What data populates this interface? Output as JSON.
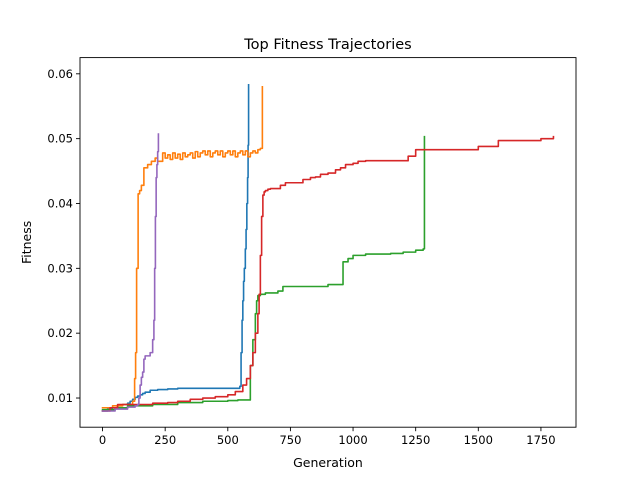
{
  "chart_data": {
    "type": "line",
    "title": "Top Fitness Trajectories",
    "xlabel": "Generation",
    "ylabel": "Fitness",
    "xlim": [
      -90,
      1890
    ],
    "ylim": [
      0.0055,
      0.0625
    ],
    "xticks": [
      0,
      250,
      500,
      750,
      1000,
      1250,
      1500,
      1750
    ],
    "xtick_labels": [
      "0",
      "250",
      "500",
      "750",
      "1000",
      "1250",
      "1500",
      "1750"
    ],
    "yticks": [
      0.01,
      0.02,
      0.03,
      0.04,
      0.05,
      0.06
    ],
    "ytick_labels": [
      "0.01",
      "0.02",
      "0.03",
      "0.04",
      "0.05",
      "0.06"
    ],
    "grid": false,
    "legend": "none",
    "series": [
      {
        "color": "#1f77b4",
        "step": true,
        "x": [
          0,
          20,
          40,
          60,
          80,
          100,
          110,
          120,
          130,
          140,
          150,
          160,
          170,
          190,
          220,
          260,
          300,
          400,
          500,
          548,
          553,
          557,
          560,
          563,
          566,
          570,
          573,
          576,
          579,
          581,
          583
        ],
        "y": [
          0.008,
          0.0083,
          0.0085,
          0.0088,
          0.009,
          0.0092,
          0.0095,
          0.0098,
          0.0101,
          0.0103,
          0.0105,
          0.0107,
          0.0109,
          0.0112,
          0.0113,
          0.0114,
          0.0115,
          0.0115,
          0.0115,
          0.0118,
          0.017,
          0.022,
          0.025,
          0.028,
          0.03,
          0.033,
          0.036,
          0.04,
          0.044,
          0.049,
          0.0583
        ]
      },
      {
        "color": "#ff7f0e",
        "step": true,
        "x": [
          0,
          40,
          80,
          120,
          128,
          132,
          136,
          142,
          148,
          155,
          165,
          180,
          195,
          210,
          220,
          240,
          250,
          260,
          270,
          280,
          290,
          300,
          310,
          320,
          330,
          340,
          350,
          360,
          370,
          380,
          390,
          400,
          410,
          420,
          430,
          440,
          450,
          460,
          470,
          480,
          490,
          500,
          510,
          520,
          530,
          540,
          550,
          560,
          570,
          580,
          590,
          600,
          610,
          620,
          630,
          638
        ],
        "y": [
          0.0085,
          0.0088,
          0.009,
          0.0095,
          0.013,
          0.017,
          0.03,
          0.0415,
          0.042,
          0.0428,
          0.0455,
          0.046,
          0.0465,
          0.047,
          0.0465,
          0.0478,
          0.047,
          0.0475,
          0.0468,
          0.0478,
          0.047,
          0.0476,
          0.0468,
          0.0478,
          0.0472,
          0.0475,
          0.0478,
          0.047,
          0.048,
          0.0472,
          0.0478,
          0.0481,
          0.0475,
          0.0481,
          0.0472,
          0.0478,
          0.0481,
          0.0475,
          0.0481,
          0.0472,
          0.0478,
          0.0481,
          0.0475,
          0.0481,
          0.0472,
          0.0478,
          0.0481,
          0.0475,
          0.0481,
          0.0472,
          0.0478,
          0.0481,
          0.0478,
          0.0483,
          0.0485,
          0.058
        ]
      },
      {
        "color": "#2ca02c",
        "step": true,
        "x": [
          0,
          50,
          100,
          200,
          300,
          400,
          500,
          540,
          590,
          600,
          610,
          615,
          620,
          625,
          630,
          640,
          650,
          700,
          720,
          900,
          950,
          960,
          980,
          1000,
          1050,
          1100,
          1150,
          1200,
          1250,
          1280,
          1285
        ],
        "y": [
          0.0082,
          0.0085,
          0.0088,
          0.009,
          0.0093,
          0.0095,
          0.0096,
          0.0097,
          0.015,
          0.019,
          0.023,
          0.025,
          0.0258,
          0.0258,
          0.026,
          0.026,
          0.0262,
          0.0265,
          0.0272,
          0.0275,
          0.0275,
          0.031,
          0.0315,
          0.032,
          0.0322,
          0.0322,
          0.0323,
          0.0325,
          0.0328,
          0.033,
          0.0503
        ]
      },
      {
        "color": "#d62728",
        "step": true,
        "x": [
          0,
          30,
          60,
          100,
          200,
          260,
          300,
          350,
          400,
          450,
          500,
          530,
          560,
          575,
          590,
          600,
          610,
          620,
          625,
          630,
          635,
          640,
          645,
          650,
          660,
          670,
          690,
          710,
          730,
          770,
          800,
          830,
          850,
          870,
          900,
          930,
          950,
          970,
          1000,
          1020,
          1050,
          1120,
          1200,
          1220,
          1250,
          1300,
          1400,
          1500,
          1530,
          1580,
          1650,
          1700,
          1750,
          1800
        ],
        "y": [
          0.008,
          0.0085,
          0.009,
          0.009,
          0.0092,
          0.0093,
          0.0095,
          0.0098,
          0.01,
          0.0102,
          0.0105,
          0.011,
          0.012,
          0.013,
          0.015,
          0.017,
          0.02,
          0.023,
          0.026,
          0.032,
          0.038,
          0.0413,
          0.0418,
          0.042,
          0.0422,
          0.0423,
          0.0423,
          0.0428,
          0.0432,
          0.0432,
          0.0437,
          0.044,
          0.0441,
          0.0445,
          0.0447,
          0.0452,
          0.0455,
          0.046,
          0.0462,
          0.0465,
          0.0466,
          0.0466,
          0.0466,
          0.0473,
          0.0483,
          0.0483,
          0.0483,
          0.0488,
          0.0488,
          0.0497,
          0.0497,
          0.0497,
          0.05,
          0.0503
        ]
      },
      {
        "color": "#9467bd",
        "step": true,
        "x": [
          0,
          50,
          100,
          130,
          140,
          145,
          150,
          155,
          160,
          165,
          170,
          190,
          200,
          205,
          208,
          211,
          214,
          217,
          220,
          223
        ],
        "y": [
          0.008,
          0.0083,
          0.0086,
          0.0088,
          0.009,
          0.01,
          0.012,
          0.0132,
          0.014,
          0.016,
          0.0165,
          0.017,
          0.019,
          0.022,
          0.03,
          0.038,
          0.044,
          0.046,
          0.048,
          0.0507
        ]
      }
    ]
  }
}
